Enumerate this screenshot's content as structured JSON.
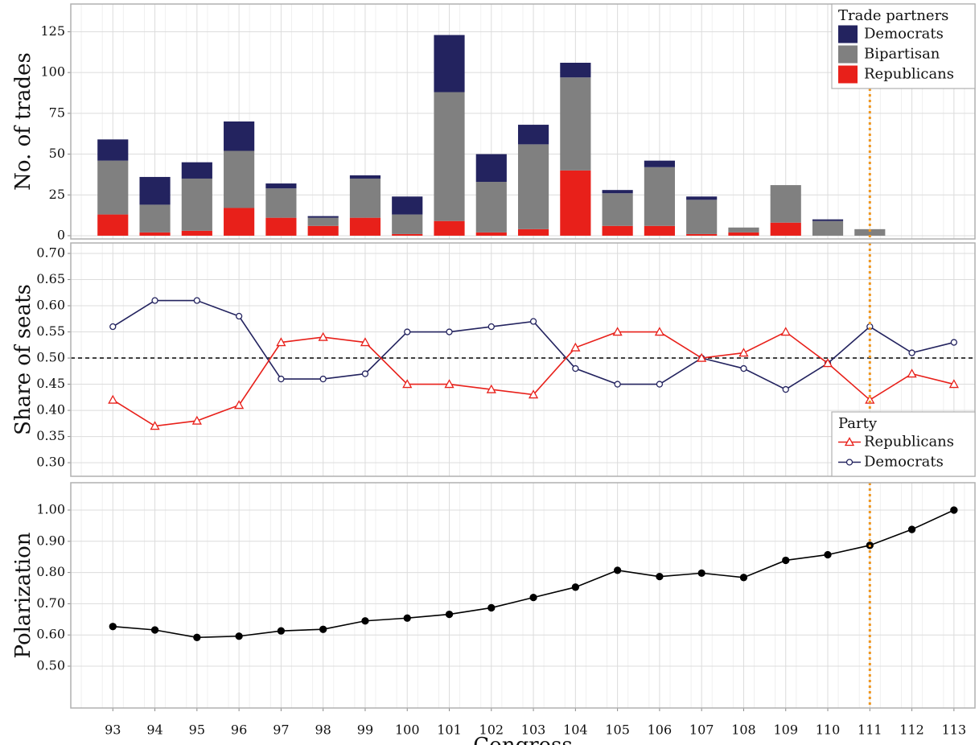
{
  "chart_data": [
    {
      "type": "bar",
      "stacked": true,
      "ylabel": "No. of trades",
      "x": [
        93,
        94,
        95,
        96,
        97,
        98,
        99,
        100,
        101,
        102,
        103,
        104,
        105,
        106,
        107,
        108,
        109,
        110,
        111,
        112,
        113
      ],
      "xlim": [
        92,
        113.5
      ],
      "ylim": [
        -2,
        142
      ],
      "yticks": [
        0,
        25,
        50,
        75,
        100,
        125
      ],
      "grid": true,
      "vline": 111,
      "vline_color": "#f0961e",
      "legend_title": "Trade partners",
      "legend": "upper right",
      "series": [
        {
          "name": "Republicans",
          "color": "#e8201a",
          "values": [
            13,
            2,
            3,
            17,
            11,
            6,
            11,
            1,
            9,
            2,
            4,
            40,
            6,
            6,
            1,
            2,
            8,
            0,
            0,
            0,
            0
          ]
        },
        {
          "name": "Bipartisan",
          "color": "#808080",
          "values": [
            33,
            17,
            32,
            35,
            18,
            5,
            24,
            12,
            79,
            31,
            52,
            57,
            20,
            36,
            21,
            3,
            23,
            9,
            4,
            0,
            0
          ]
        },
        {
          "name": "Democrats",
          "color": "#23235f",
          "values": [
            13,
            17,
            10,
            18,
            3,
            1,
            2,
            11,
            35,
            17,
            12,
            9,
            2,
            4,
            2,
            0,
            0,
            1,
            0,
            0,
            0
          ]
        }
      ]
    },
    {
      "type": "line",
      "ylabel": "Share of seats",
      "x": [
        93,
        94,
        95,
        96,
        97,
        98,
        99,
        100,
        101,
        102,
        103,
        104,
        105,
        106,
        107,
        108,
        109,
        110,
        111,
        112,
        113
      ],
      "xlim": [
        92,
        113.5
      ],
      "ylim": [
        0.274,
        0.72
      ],
      "yticks": [
        {
          "value": 0.3,
          "label": "0.30"
        },
        0.35,
        {
          "value": 0.4,
          "label": "0.40"
        },
        0.45,
        {
          "value": 0.5,
          "label": "0.50"
        },
        0.55,
        {
          "value": 0.6,
          "label": "0.60"
        },
        0.65,
        {
          "value": 0.7,
          "label": "0.70"
        }
      ],
      "grid": true,
      "hline": 0.5,
      "vline": 111,
      "vline_color": "#f0961e",
      "legend_title": "Party",
      "legend": "lower right",
      "series": [
        {
          "name": "Democrats",
          "color": "#23235f",
          "marker": "circle",
          "values": [
            0.56,
            0.61,
            0.61,
            0.58,
            0.46,
            0.46,
            0.47,
            0.55,
            0.55,
            0.56,
            0.57,
            0.48,
            0.45,
            0.45,
            0.5,
            0.48,
            0.44,
            0.49,
            0.56,
            0.51,
            0.53
          ]
        },
        {
          "name": "Republicans",
          "color": "#e8201a",
          "marker": "triangle",
          "values": [
            0.42,
            0.37,
            0.38,
            0.41,
            0.53,
            0.54,
            0.53,
            0.45,
            0.45,
            0.44,
            0.43,
            0.52,
            0.55,
            0.55,
            0.5,
            0.51,
            0.55,
            0.49,
            0.42,
            0.47,
            0.45
          ]
        }
      ]
    },
    {
      "type": "line",
      "ylabel": "Polarization",
      "xlabel": "Congress",
      "x": [
        93,
        94,
        95,
        96,
        97,
        98,
        99,
        100,
        101,
        102,
        103,
        104,
        105,
        106,
        107,
        108,
        109,
        110,
        111,
        112,
        113
      ],
      "xlim": [
        92,
        113.5
      ],
      "ylim": [
        0.366,
        1.0876
      ],
      "xticks": [
        93,
        94,
        95,
        96,
        97,
        98,
        99,
        100,
        101,
        102,
        103,
        104,
        105,
        106,
        107,
        108,
        109,
        110,
        111,
        112,
        113
      ],
      "yticks": [
        {
          "value": 0.5,
          "label": "0.50"
        },
        {
          "value": 0.6,
          "label": "0.60"
        },
        {
          "value": 0.7,
          "label": "0.70"
        },
        {
          "value": 0.8,
          "label": "0.80"
        },
        {
          "value": 0.9,
          "label": "0.90"
        },
        {
          "value": 1.0,
          "label": "1.00"
        }
      ],
      "grid": true,
      "vline": 111,
      "vline_color": "#f0961e",
      "series": [
        {
          "color": "#000000",
          "marker": "filled-circle",
          "values": [
            0.627,
            0.616,
            0.592,
            0.596,
            0.613,
            0.618,
            0.645,
            0.654,
            0.666,
            0.687,
            0.72,
            0.753,
            0.807,
            0.787,
            0.798,
            0.784,
            0.839,
            0.857,
            0.887,
            0.938,
            1.0
          ]
        }
      ]
    }
  ]
}
